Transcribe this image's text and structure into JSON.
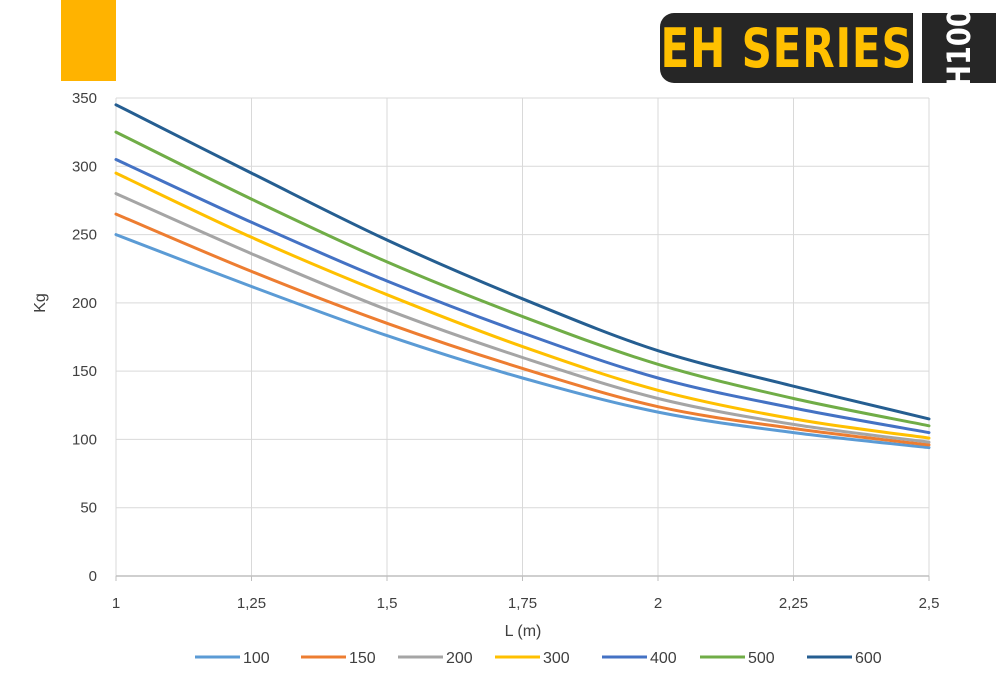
{
  "header": {
    "brand": "EH SERIES",
    "model": "H100",
    "accent_color": "#ffb300",
    "brand_color": "#ffc000",
    "badge_bg": "#262626"
  },
  "chart_data": {
    "type": "line",
    "title": "",
    "xlabel": "L (m)",
    "ylabel": "Kg",
    "x": [
      1,
      1.25,
      1.5,
      1.75,
      2,
      2.25,
      2.5
    ],
    "x_tick_labels": [
      "1",
      "1,25",
      "1,5",
      "1,75",
      "2",
      "2,25",
      "2,5"
    ],
    "ylim": [
      0,
      350
    ],
    "y_ticks": [
      0,
      50,
      100,
      150,
      200,
      250,
      300,
      350
    ],
    "grid": true,
    "legend_position": "bottom",
    "series": [
      {
        "name": "100",
        "color": "#5b9bd5",
        "values": [
          250,
          212,
          176,
          145,
          120,
          105,
          94
        ]
      },
      {
        "name": "150",
        "color": "#ed7d31",
        "values": [
          265,
          223,
          185,
          152,
          124,
          108,
          96
        ]
      },
      {
        "name": "200",
        "color": "#a5a5a5",
        "values": [
          280,
          236,
          195,
          160,
          130,
          111,
          98
        ]
      },
      {
        "name": "300",
        "color": "#ffc000",
        "values": [
          295,
          248,
          206,
          168,
          136,
          115,
          101
        ]
      },
      {
        "name": "400",
        "color": "#4472c4",
        "values": [
          305,
          259,
          216,
          178,
          145,
          123,
          105
        ]
      },
      {
        "name": "500",
        "color": "#70ad47",
        "values": [
          325,
          276,
          230,
          190,
          155,
          130,
          110
        ]
      },
      {
        "name": "600",
        "color": "#255e91",
        "values": [
          345,
          295,
          246,
          203,
          165,
          139,
          115
        ]
      }
    ]
  }
}
